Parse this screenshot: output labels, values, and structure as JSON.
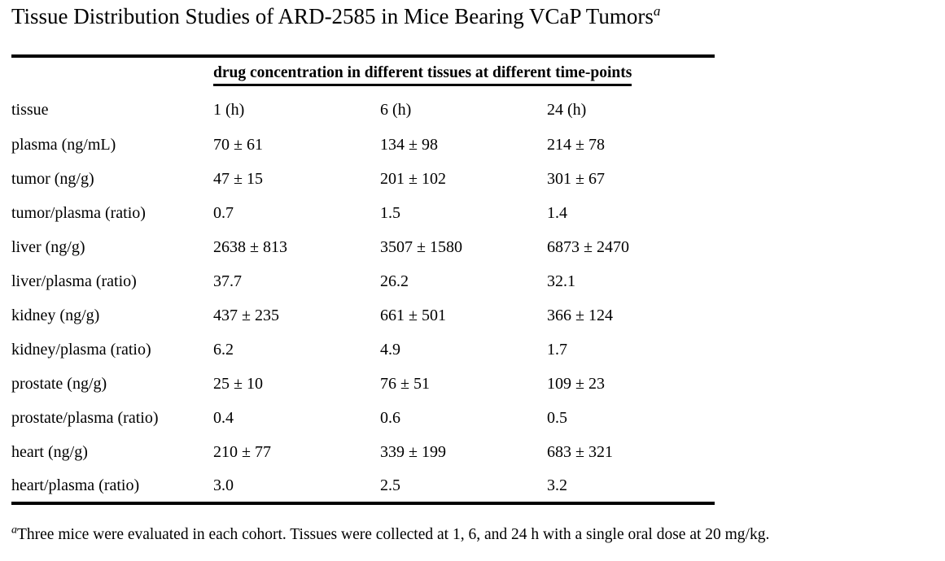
{
  "title": {
    "text": "Tissue Distribution Studies of ARD-2585 in Mice Bearing VCaP Tumors",
    "superscript": "a"
  },
  "table": {
    "span_header": "drug concentration in different tissues at different time-points",
    "columns": [
      "tissue",
      "1 (h)",
      "6 (h)",
      "24 (h)"
    ],
    "rows": [
      {
        "tissue": "plasma (ng/mL)",
        "values": [
          "70 ± 61",
          "134 ± 98",
          "214 ± 78"
        ]
      },
      {
        "tissue": "tumor (ng/g)",
        "values": [
          "47 ± 15",
          "201 ± 102",
          "301 ± 67"
        ]
      },
      {
        "tissue": "tumor/plasma (ratio)",
        "values": [
          "0.7",
          "1.5",
          "1.4"
        ]
      },
      {
        "tissue": "liver (ng/g)",
        "values": [
          "2638 ± 813",
          "3507 ± 1580",
          "6873 ± 2470"
        ]
      },
      {
        "tissue": "liver/plasma (ratio)",
        "values": [
          "37.7",
          "26.2",
          "32.1"
        ]
      },
      {
        "tissue": "kidney (ng/g)",
        "values": [
          "437 ± 235",
          "661 ± 501",
          "366 ± 124"
        ]
      },
      {
        "tissue": "kidney/plasma (ratio)",
        "values": [
          "6.2",
          "4.9",
          "1.7"
        ]
      },
      {
        "tissue": "prostate (ng/g)",
        "values": [
          "25 ± 10",
          "76 ± 51",
          "109 ± 23"
        ]
      },
      {
        "tissue": "prostate/plasma (ratio)",
        "values": [
          "0.4",
          "0.6",
          "0.5"
        ]
      },
      {
        "tissue": "heart (ng/g)",
        "values": [
          "210 ± 77",
          "339 ± 199",
          "683 ± 321"
        ]
      },
      {
        "tissue": "heart/plasma (ratio)",
        "values": [
          "3.0",
          "2.5",
          "3.2"
        ]
      }
    ]
  },
  "footnote": {
    "superscript": "a",
    "text": "Three mice were evaluated in each cohort. Tissues were collected at 1, 6, and 24 h with a single oral dose at 20 mg/kg."
  },
  "colors": {
    "background": "#ffffff",
    "text": "#000000",
    "rule": "#000000"
  }
}
